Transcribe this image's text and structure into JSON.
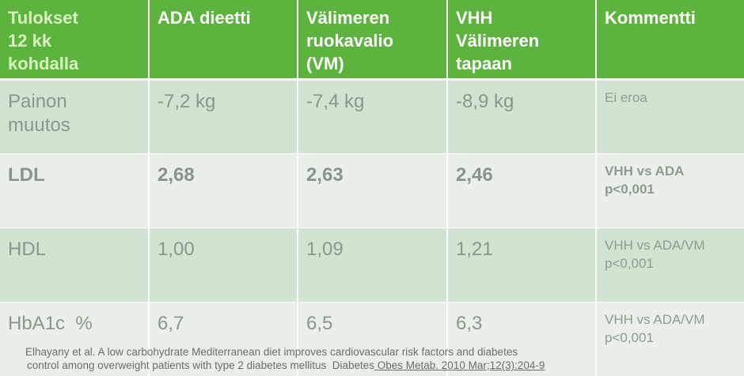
{
  "header": {
    "col0": [
      "Tulokset",
      "12 kk",
      "kohdalla"
    ],
    "col1": [
      "ADA dieetti"
    ],
    "col2": [
      "Välimeren",
      "ruokavalio",
      "(VM)"
    ],
    "col3": [
      "VHH",
      "Välimeren",
      "tapaan"
    ],
    "col4": [
      "Kommentti"
    ]
  },
  "rows": [
    {
      "name": [
        "Painon",
        "muutos"
      ],
      "ada": "-7,2 kg",
      "vm": "-7,4 kg",
      "vhh": "-8,9 kg",
      "comment": [
        "Ei eroa"
      ]
    },
    {
      "name": [
        "LDL"
      ],
      "ada": "2,68",
      "vm": "2,63",
      "vhh": "2,46",
      "comment": [
        "VHH vs ADA",
        "p<0,001"
      ]
    },
    {
      "name": [
        "HDL"
      ],
      "ada": "1,00",
      "vm": "1,09",
      "vhh": "1,21",
      "comment": [
        "VHH vs ADA/VM",
        "p<0,001"
      ]
    },
    {
      "name": [
        "HbA1c  %"
      ],
      "ada": "6,7",
      "vm": "6,5",
      "vhh": "6,3",
      "comment": [
        "VHH vs ADA/VM",
        "p<0,001"
      ]
    }
  ],
  "reference": {
    "line1": "Elhayany et al. A low carbohydrate Mediterranean diet improves cardiovascular risk factors and diabetes",
    "line2_text": "control among overweight patients with type 2 diabetes mellitus  Diabetes",
    "line2_link": " Obes Metab. 2010 Mar;12(3):204-9"
  },
  "colors": {
    "header_bg": "#5cb33d",
    "row_dark": "#d3e3d2",
    "row_light": "#e9f0e8",
    "text_gray": "#8a978a"
  }
}
